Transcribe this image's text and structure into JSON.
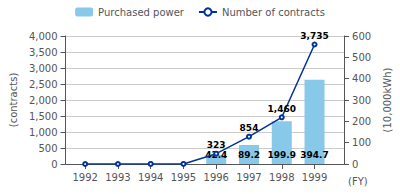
{
  "chart_data": {
    "type": "bar",
    "xlabel": "(FY)",
    "ylabel": "(contracts)",
    "y2label": "(10,000kWh)",
    "xlim": [
      1991.4,
      1999.9
    ],
    "xticks": [
      1992,
      1993,
      1994,
      1995,
      1996,
      1997,
      1998,
      1999
    ],
    "ylim": [
      0,
      4000
    ],
    "yticks": [
      0,
      500,
      {
        "value": 1000,
        "label": "1,000"
      },
      {
        "value": 1500,
        "label": "1,500"
      },
      {
        "value": 2000,
        "label": "2,000"
      },
      {
        "value": 2500,
        "label": "2,500"
      },
      {
        "value": 3000,
        "label": "3,000"
      },
      {
        "value": 3500,
        "label": "3,500"
      },
      {
        "value": 4000,
        "label": "4,000"
      }
    ],
    "y2lim": [
      0,
      600
    ],
    "y2ticks": [
      0,
      100,
      200,
      300,
      400,
      500,
      600
    ],
    "grid": true,
    "legend": "top",
    "series": [
      {
        "name": "Purchased power",
        "type": "bar",
        "axis": "y2",
        "color": "#88c8e8",
        "data_labels": true,
        "x": [
          1996,
          1997,
          1998,
          1999
        ],
        "values": [
          42.4,
          89.2,
          199.9,
          394.7
        ]
      },
      {
        "name": "Number of contracts",
        "type": "line",
        "color": "#003399",
        "x": [
          1992,
          1993,
          1994,
          1995,
          1996,
          1997,
          1998,
          1999
        ],
        "values": [
          0,
          0,
          1,
          1,
          323,
          854,
          1460,
          3735
        ]
      }
    ],
    "annotations": [
      {
        "x": 1996,
        "y": 323,
        "text": "323"
      },
      {
        "x": 1997,
        "y": 854,
        "text": "854"
      },
      {
        "x": 1998,
        "y": 1460,
        "text": "1,460"
      },
      {
        "x": 1999,
        "y": 3735,
        "text": "3,735"
      }
    ]
  }
}
